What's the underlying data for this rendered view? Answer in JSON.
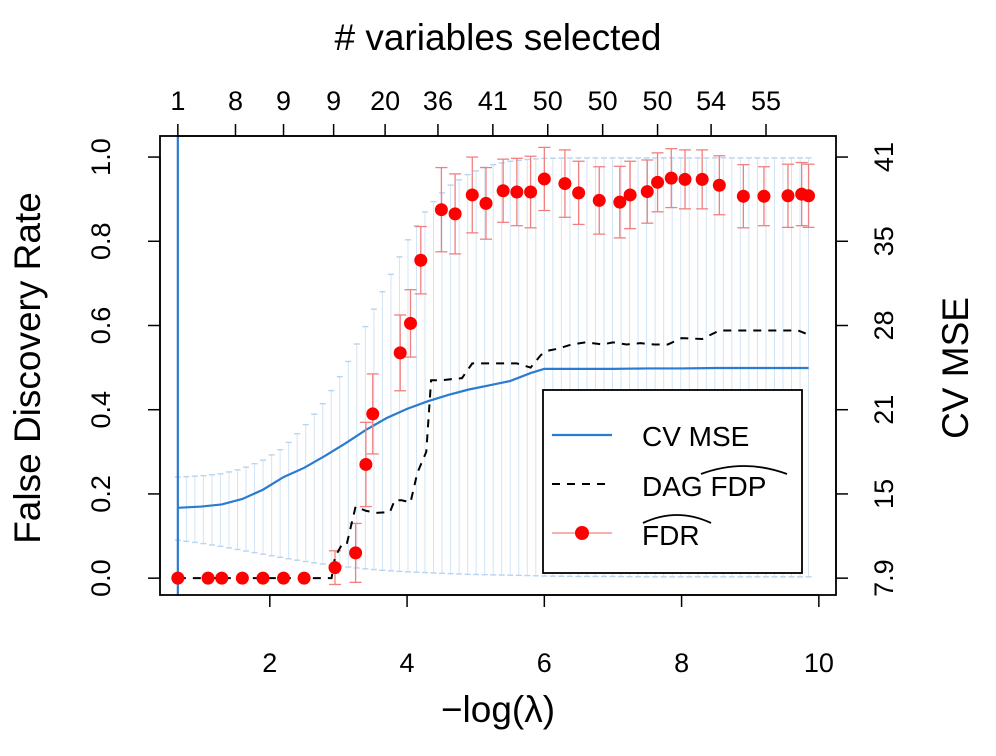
{
  "chart_data": {
    "type": "line",
    "top_title": "# variables selected",
    "xlabel": "−log(λ)",
    "ylabel_left": "False Discovery Rate",
    "ylabel_right": "CV MSE",
    "xlim": [
      0.4,
      10.25
    ],
    "ylim": [
      -0.04,
      1.05
    ],
    "x_ticks": [
      2,
      4,
      6,
      8,
      10
    ],
    "y_ticks_left": [
      0.0,
      0.2,
      0.4,
      0.6,
      0.8,
      1.0
    ],
    "y_ticks_left_labels": [
      "0.0",
      "0.2",
      "0.4",
      "0.6",
      "0.8",
      "1.0"
    ],
    "y_ticks_right": [
      {
        "label": "7.9",
        "at": 0.0
      },
      {
        "label": "15",
        "at": 0.2
      },
      {
        "label": "21",
        "at": 0.4
      },
      {
        "label": "28",
        "at": 0.6
      },
      {
        "label": "35",
        "at": 0.8
      },
      {
        "label": "41",
        "at": 1.0
      }
    ],
    "top_ticks": [
      {
        "x": 0.66,
        "label": "1"
      },
      {
        "x": 1.5,
        "label": "8"
      },
      {
        "x": 2.2,
        "label": "9"
      },
      {
        "x": 2.93,
        "label": "9"
      },
      {
        "x": 3.68,
        "label": "20"
      },
      {
        "x": 4.45,
        "label": "36"
      },
      {
        "x": 5.25,
        "label": "41"
      },
      {
        "x": 6.05,
        "label": "50"
      },
      {
        "x": 6.85,
        "label": "50"
      },
      {
        "x": 7.65,
        "label": "50"
      },
      {
        "x": 8.43,
        "label": "54"
      },
      {
        "x": 9.23,
        "label": "55"
      }
    ],
    "vline_x": 0.66,
    "cv_mse": {
      "name": "CV MSE",
      "color": "#2b7bd0",
      "x": [
        0.66,
        1.0,
        1.3,
        1.6,
        1.9,
        2.2,
        2.5,
        2.8,
        3.1,
        3.4,
        3.7,
        4.0,
        4.3,
        4.6,
        4.9,
        5.2,
        5.5,
        5.8,
        6.0,
        6.5,
        7.0,
        7.5,
        8.0,
        8.5,
        9.0,
        9.5,
        9.85
      ],
      "y": [
        0.167,
        0.17,
        0.175,
        0.188,
        0.21,
        0.24,
        0.262,
        0.29,
        0.32,
        0.352,
        0.38,
        0.402,
        0.42,
        0.435,
        0.448,
        0.458,
        0.468,
        0.487,
        0.497,
        0.497,
        0.497,
        0.498,
        0.498,
        0.499,
        0.499,
        0.499,
        0.499
      ],
      "err_upper": [
        0.24,
        0.243,
        0.248,
        0.26,
        0.28,
        0.31,
        0.36,
        0.42,
        0.5,
        0.6,
        0.7,
        0.8,
        0.88,
        0.93,
        0.96,
        0.98,
        0.99,
        0.995,
        0.997,
        0.998,
        0.998,
        0.998,
        0.998,
        0.998,
        0.998,
        0.998,
        0.998
      ],
      "err_lower": [
        0.09,
        0.083,
        0.075,
        0.066,
        0.057,
        0.048,
        0.04,
        0.033,
        0.027,
        0.022,
        0.018,
        0.015,
        0.013,
        0.011,
        0.009,
        0.008,
        0.007,
        0.006,
        0.005,
        0.004,
        0.004,
        0.003,
        0.003,
        0.003,
        0.003,
        0.003,
        0.003
      ]
    },
    "dag_fdp": {
      "name": "DAG FDP",
      "color": "#000000",
      "x": [
        0.66,
        2.9,
        2.95,
        3.05,
        3.12,
        3.25,
        3.4,
        3.55,
        3.75,
        3.82,
        3.92,
        4.05,
        4.15,
        4.28,
        4.35,
        4.5,
        4.8,
        4.95,
        5.2,
        5.6,
        5.8,
        5.95,
        6.05,
        6.2,
        6.4,
        6.6,
        6.85,
        7.0,
        7.2,
        7.4,
        7.6,
        7.8,
        8.0,
        8.3,
        8.55,
        9.0,
        9.5,
        9.7,
        9.85
      ],
      "y": [
        0.0,
        0.0,
        0.05,
        0.08,
        0.08,
        0.17,
        0.16,
        0.155,
        0.157,
        0.185,
        0.185,
        0.18,
        0.25,
        0.3,
        0.47,
        0.47,
        0.475,
        0.51,
        0.51,
        0.51,
        0.5,
        0.53,
        0.54,
        0.545,
        0.555,
        0.56,
        0.555,
        0.56,
        0.555,
        0.558,
        0.555,
        0.555,
        0.57,
        0.568,
        0.588,
        0.588,
        0.588,
        0.588,
        0.578
      ]
    },
    "fdr": {
      "name": "FDR",
      "color": "#ff0000",
      "error_color": "#f08080",
      "x": [
        0.66,
        1.1,
        1.3,
        1.6,
        1.9,
        2.2,
        2.5,
        2.95,
        3.25,
        3.4,
        3.5,
        3.9,
        4.05,
        4.2,
        4.5,
        4.7,
        4.95,
        5.15,
        5.4,
        5.6,
        5.8,
        6.0,
        6.3,
        6.5,
        6.8,
        7.1,
        7.25,
        7.5,
        7.65,
        7.85,
        8.05,
        8.3,
        8.55,
        8.9,
        9.2,
        9.55,
        9.75,
        9.85
      ],
      "y": [
        0.0,
        0.0,
        0.0,
        0.0,
        0.0,
        0.0,
        0.0,
        0.025,
        0.06,
        0.27,
        0.39,
        0.535,
        0.605,
        0.755,
        0.875,
        0.865,
        0.91,
        0.89,
        0.92,
        0.917,
        0.917,
        0.948,
        0.937,
        0.915,
        0.897,
        0.893,
        0.91,
        0.918,
        0.94,
        0.95,
        0.947,
        0.947,
        0.933,
        0.907,
        0.907,
        0.908,
        0.912,
        0.908
      ],
      "err": [
        0.0,
        0.0,
        0.0,
        0.0,
        0.0,
        0.0,
        0.0,
        0.04,
        0.07,
        0.1,
        0.095,
        0.09,
        0.08,
        0.08,
        0.1,
        0.095,
        0.09,
        0.085,
        0.075,
        0.08,
        0.085,
        0.075,
        0.08,
        0.075,
        0.08,
        0.085,
        0.08,
        0.075,
        0.07,
        0.07,
        0.07,
        0.07,
        0.07,
        0.075,
        0.07,
        0.075,
        0.075,
        0.075
      ]
    },
    "legend": {
      "position": "bottom-right",
      "entries": [
        {
          "label": "CV MSE",
          "style": "solid-line"
        },
        {
          "label": "DAG FDP",
          "style": "dashed-line"
        },
        {
          "label": "FDR",
          "style": "line-with-dots"
        }
      ]
    }
  }
}
